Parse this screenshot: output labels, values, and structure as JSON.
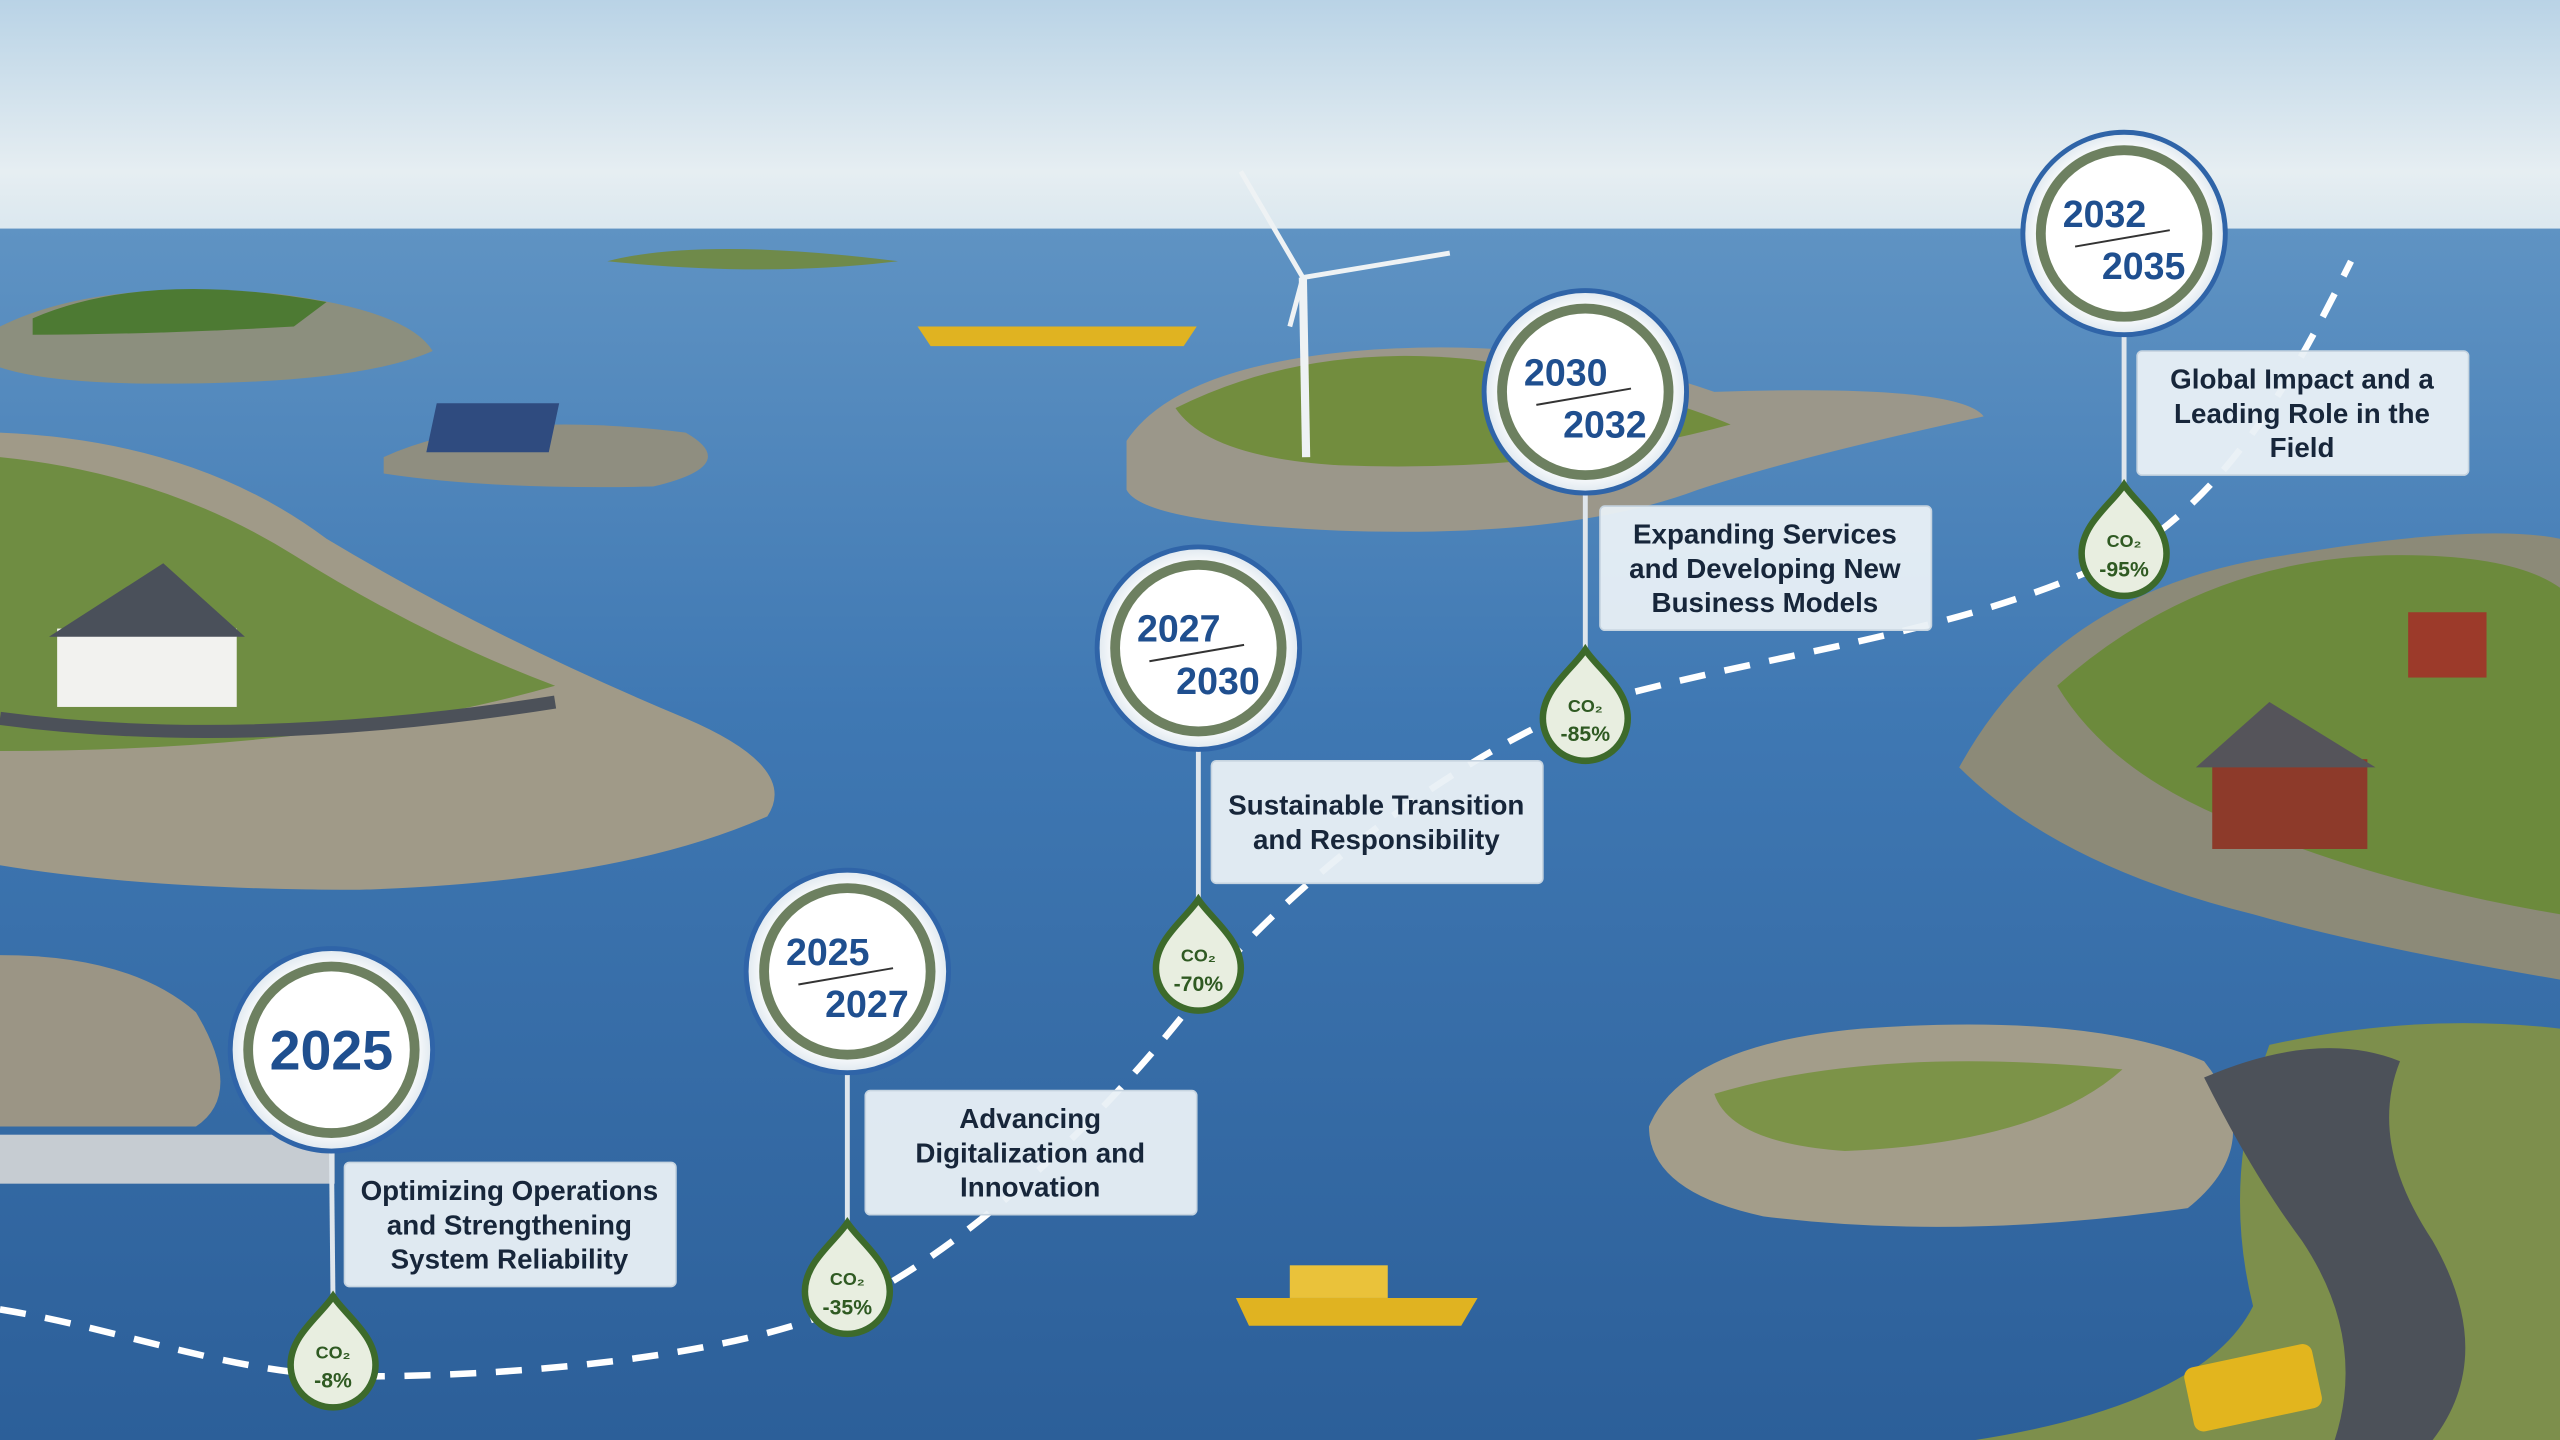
{
  "milestones": [
    {
      "years": [
        "2025"
      ],
      "title": [
        "Optimizing Operations",
        "and Strengthening",
        "System Reliability"
      ],
      "co2": "CO₂",
      "reduction": "-8%"
    },
    {
      "years": [
        "2025",
        "2027"
      ],
      "title": [
        "Advancing",
        "Digitalization and",
        "Innovation"
      ],
      "co2": "CO₂",
      "reduction": "-35%"
    },
    {
      "years": [
        "2027",
        "2030"
      ],
      "title": [
        "Sustainable Transition",
        "and Responsibility"
      ],
      "co2": "CO₂",
      "reduction": "-70%"
    },
    {
      "years": [
        "2030",
        "2032"
      ],
      "title": [
        "Expanding Services",
        "and Developing New",
        "Business Models"
      ],
      "co2": "CO₂",
      "reduction": "-85%"
    },
    {
      "years": [
        "2032",
        "2035"
      ],
      "title": [
        "Global Impact and a",
        "Leading Role in the",
        "Field"
      ],
      "co2": "CO₂",
      "reduction": "-95%"
    }
  ]
}
